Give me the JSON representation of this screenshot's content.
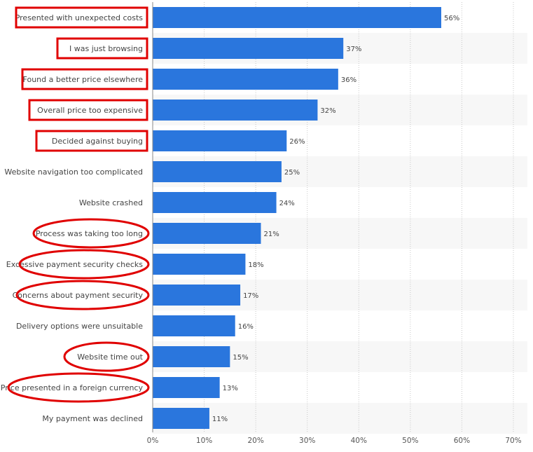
{
  "chart_data": {
    "type": "bar",
    "orientation": "horizontal",
    "categories": [
      "Presented with unexpected costs",
      "I was just browsing",
      "Found a better price elsewhere",
      "Overall price too expensive",
      "Decided against buying",
      "Website navigation too complicated",
      "Website crashed",
      "Process was taking too long",
      "Excessive payment security checks",
      "Concerns about payment security",
      "Delivery options were unsuitable",
      "Website time out",
      "Price presented in a foreign currency",
      "My payment was declined"
    ],
    "values": [
      56,
      37,
      36,
      32,
      26,
      25,
      24,
      21,
      18,
      17,
      16,
      15,
      13,
      11
    ],
    "value_labels": [
      "56%",
      "37%",
      "36%",
      "32%",
      "26%",
      "25%",
      "24%",
      "21%",
      "18%",
      "17%",
      "16%",
      "15%",
      "13%",
      "11%"
    ],
    "xlim": [
      0,
      70
    ],
    "x_ticks": [
      "0%",
      "10%",
      "20%",
      "30%",
      "40%",
      "50%",
      "60%",
      "70%"
    ],
    "grid": true,
    "colors": {
      "bar": "#2a76dd",
      "highlight": "#e00000",
      "band": "#f7f7f7"
    },
    "annotations": {
      "rectangles": [
        0,
        1,
        2,
        3,
        4
      ],
      "ellipses": [
        7,
        8,
        9,
        11,
        12
      ]
    }
  }
}
